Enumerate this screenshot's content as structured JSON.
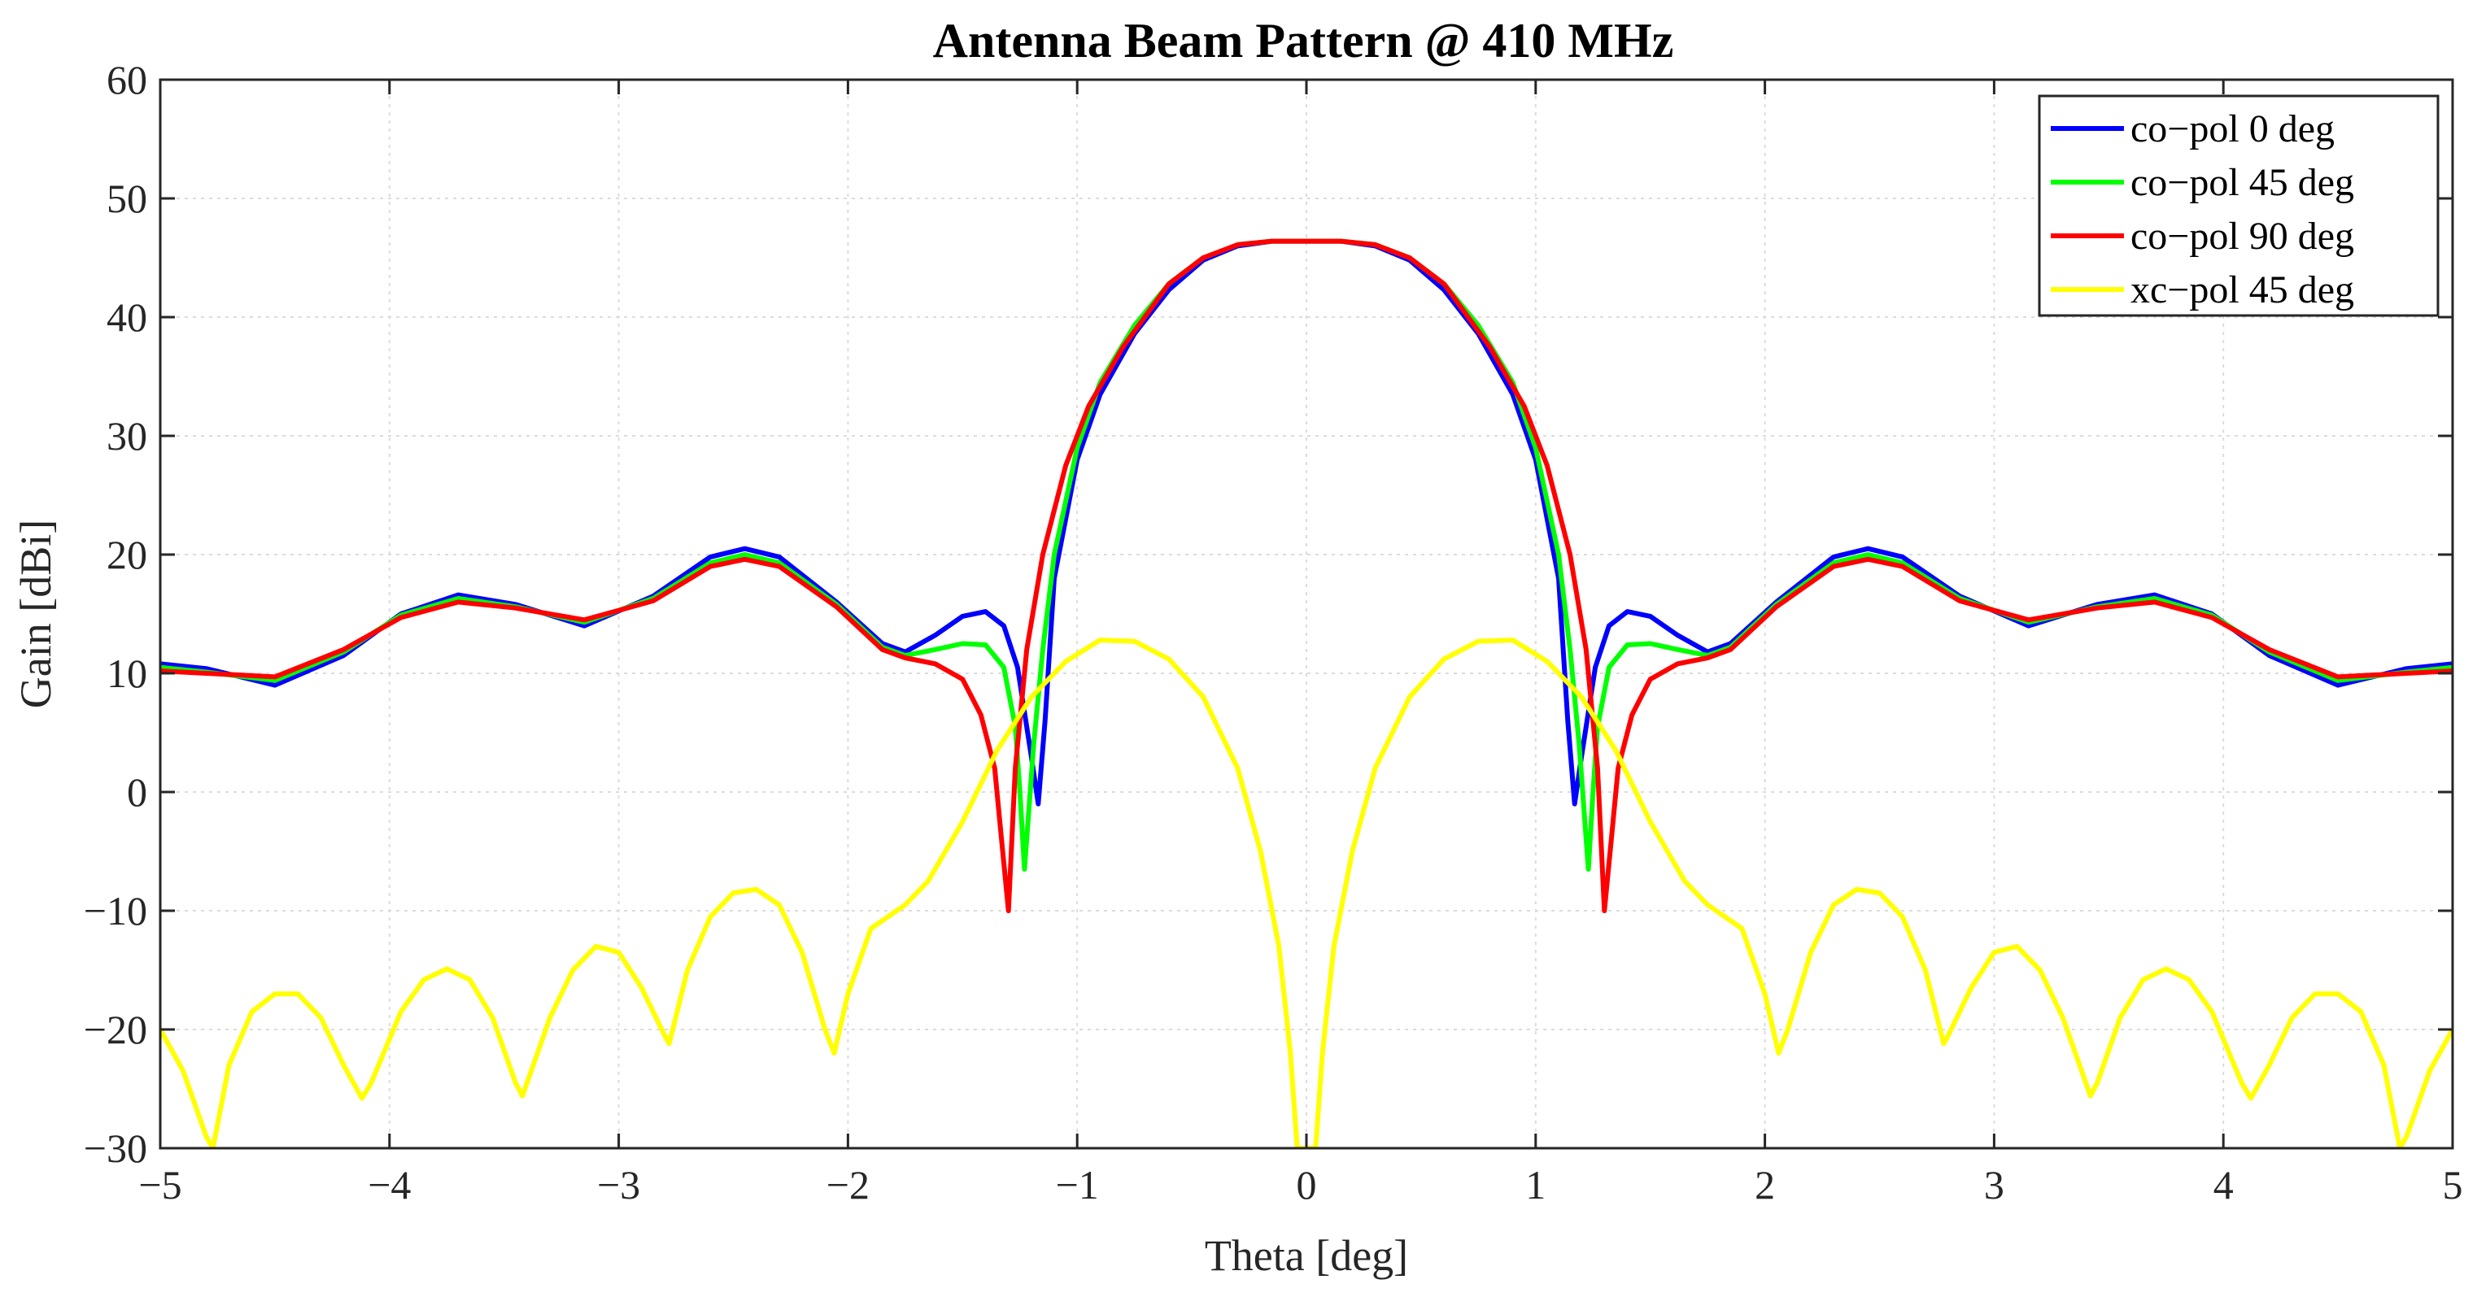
{
  "chart_data": {
    "type": "line",
    "title": "Antenna Beam Pattern @ 410 MHz",
    "xlabel": "Theta  [deg]",
    "ylabel": "Gain  [dBi]",
    "xlim": [
      -5,
      5
    ],
    "ylim": [
      -30,
      60
    ],
    "xticks": [
      -5,
      -4,
      -3,
      -2,
      -1,
      0,
      1,
      2,
      3,
      4,
      5
    ],
    "xtick_labels": [
      "−5",
      "−4",
      "−3",
      "−2",
      "−1",
      "0",
      "1",
      "2",
      "3",
      "4",
      "5"
    ],
    "yticks": [
      -30,
      -20,
      -10,
      0,
      10,
      20,
      30,
      40,
      50,
      60
    ],
    "ytick_labels": [
      "−30",
      "−20",
      "−10",
      "0",
      "10",
      "20",
      "30",
      "40",
      "50",
      "60"
    ],
    "grid": true,
    "legend_position": "top-right",
    "series": [
      {
        "name": "co−pol 0 deg",
        "color": "#0000ff",
        "x": [
          -5,
          -4.8,
          -4.5,
          -4.2,
          -3.95,
          -3.7,
          -3.45,
          -3.15,
          -2.85,
          -2.6,
          -2.45,
          -2.3,
          -2.05,
          -1.85,
          -1.75,
          -1.62,
          -1.5,
          -1.4,
          -1.32,
          -1.26,
          -1.2,
          -1.17,
          -1.14,
          -1.1,
          -1.0,
          -0.9,
          -0.75,
          -0.6,
          -0.45,
          -0.3,
          -0.15,
          0,
          0.15,
          0.3,
          0.45,
          0.6,
          0.75,
          0.9,
          1.0,
          1.1,
          1.14,
          1.17,
          1.2,
          1.26,
          1.32,
          1.4,
          1.5,
          1.62,
          1.75,
          1.85,
          2.05,
          2.3,
          2.45,
          2.6,
          2.85,
          3.15,
          3.45,
          3.7,
          3.95,
          4.2,
          4.5,
          4.8,
          5
        ],
        "y": [
          10.8,
          10.4,
          9.0,
          11.5,
          15.0,
          16.6,
          15.8,
          14.0,
          16.5,
          19.8,
          20.5,
          19.8,
          16.0,
          12.5,
          11.8,
          13.2,
          14.8,
          15.2,
          14.0,
          10.5,
          3.0,
          -1.0,
          6.0,
          18.0,
          28.0,
          33.5,
          38.6,
          42.3,
          44.8,
          46.0,
          46.4,
          46.4,
          46.4,
          46.0,
          44.8,
          42.3,
          38.6,
          33.5,
          28.0,
          18.0,
          6.0,
          -1.0,
          3.0,
          10.5,
          14.0,
          15.2,
          14.8,
          13.2,
          11.8,
          12.5,
          16.0,
          19.8,
          20.5,
          19.8,
          16.5,
          14.0,
          15.8,
          16.6,
          15.0,
          11.5,
          9.0,
          10.4,
          10.8
        ]
      },
      {
        "name": "co−pol 45 deg",
        "color": "#00ff00",
        "x": [
          -5,
          -4.8,
          -4.5,
          -4.2,
          -3.95,
          -3.7,
          -3.45,
          -3.15,
          -2.85,
          -2.6,
          -2.45,
          -2.3,
          -2.05,
          -1.85,
          -1.75,
          -1.62,
          -1.5,
          -1.4,
          -1.32,
          -1.27,
          -1.25,
          -1.23,
          -1.19,
          -1.15,
          -1.1,
          -1.0,
          -0.9,
          -0.75,
          -0.6,
          -0.45,
          -0.3,
          -0.15,
          0,
          0.15,
          0.3,
          0.45,
          0.6,
          0.75,
          0.9,
          1.0,
          1.1,
          1.15,
          1.19,
          1.23,
          1.25,
          1.27,
          1.32,
          1.4,
          1.5,
          1.62,
          1.75,
          1.85,
          2.05,
          2.3,
          2.45,
          2.6,
          2.85,
          3.15,
          3.45,
          3.7,
          3.95,
          4.2,
          4.5,
          4.8,
          5
        ],
        "y": [
          10.5,
          10.1,
          9.4,
          11.8,
          14.9,
          16.3,
          15.6,
          14.3,
          16.3,
          19.3,
          20.0,
          19.3,
          15.8,
          12.2,
          11.5,
          12.0,
          12.5,
          12.4,
          10.5,
          5.5,
          0.0,
          -6.5,
          4.0,
          12.0,
          20.0,
          29.0,
          34.5,
          39.3,
          42.8,
          45.0,
          46.1,
          46.4,
          46.4,
          46.4,
          46.1,
          45.0,
          42.8,
          39.3,
          34.5,
          29.0,
          20.0,
          12.0,
          4.0,
          -6.5,
          0.0,
          5.5,
          10.5,
          12.4,
          12.5,
          12.0,
          11.5,
          12.2,
          15.8,
          19.3,
          20.0,
          19.3,
          16.3,
          14.3,
          15.6,
          16.3,
          14.9,
          11.8,
          9.4,
          10.1,
          10.5
        ]
      },
      {
        "name": "co−pol 90 deg",
        "color": "#ff0000",
        "x": [
          -5,
          -4.8,
          -4.5,
          -4.2,
          -3.95,
          -3.7,
          -3.45,
          -3.15,
          -2.85,
          -2.6,
          -2.45,
          -2.3,
          -2.05,
          -1.85,
          -1.75,
          -1.62,
          -1.5,
          -1.42,
          -1.36,
          -1.33,
          -1.3,
          -1.27,
          -1.22,
          -1.15,
          -1.05,
          -0.95,
          -0.8,
          -0.6,
          -0.45,
          -0.3,
          -0.15,
          0,
          0.15,
          0.3,
          0.45,
          0.6,
          0.8,
          0.95,
          1.05,
          1.15,
          1.22,
          1.27,
          1.3,
          1.33,
          1.36,
          1.42,
          1.5,
          1.62,
          1.75,
          1.85,
          2.05,
          2.3,
          2.45,
          2.6,
          2.85,
          3.15,
          3.45,
          3.7,
          3.95,
          4.2,
          4.5,
          4.8,
          5
        ],
        "y": [
          10.2,
          10.0,
          9.7,
          12.0,
          14.7,
          16.0,
          15.5,
          14.5,
          16.1,
          19.0,
          19.6,
          19.0,
          15.6,
          12.0,
          11.3,
          10.8,
          9.5,
          6.5,
          2.0,
          -4.0,
          -10.0,
          2.0,
          12.0,
          20.0,
          27.5,
          32.5,
          37.5,
          42.8,
          45.0,
          46.1,
          46.4,
          46.4,
          46.4,
          46.1,
          45.0,
          42.8,
          37.5,
          32.5,
          27.5,
          20.0,
          12.0,
          2.0,
          -10.0,
          -4.0,
          2.0,
          6.5,
          9.5,
          10.8,
          11.3,
          12.0,
          15.6,
          19.0,
          19.6,
          19.0,
          16.1,
          14.5,
          15.5,
          16.0,
          14.7,
          12.0,
          9.7,
          10.0,
          10.2
        ]
      },
      {
        "name": "xc−pol 45 deg",
        "color": "#ffff00",
        "x": [
          -5,
          -4.9,
          -4.8,
          -4.77,
          -4.7,
          -4.6,
          -4.5,
          -4.4,
          -4.3,
          -4.2,
          -4.12,
          -4.08,
          -3.95,
          -3.85,
          -3.75,
          -3.65,
          -3.55,
          -3.45,
          -3.42,
          -3.3,
          -3.2,
          -3.1,
          -3.0,
          -2.9,
          -2.8,
          -2.78,
          -2.7,
          -2.6,
          -2.5,
          -2.4,
          -2.3,
          -2.2,
          -2.1,
          -2.06,
          -2.0,
          -1.9,
          -1.75,
          -1.65,
          -1.5,
          -1.35,
          -1.2,
          -1.05,
          -0.9,
          -0.75,
          -0.6,
          -0.45,
          -0.3,
          -0.2,
          -0.12,
          -0.07,
          -0.04,
          0,
          0.04,
          0.07,
          0.12,
          0.2,
          0.3,
          0.45,
          0.6,
          0.75,
          0.9,
          1.05,
          1.2,
          1.35,
          1.5,
          1.65,
          1.75,
          1.9,
          2.0,
          2.06,
          2.1,
          2.2,
          2.3,
          2.4,
          2.5,
          2.6,
          2.7,
          2.78,
          2.8,
          2.9,
          3.0,
          3.1,
          3.2,
          3.3,
          3.42,
          3.45,
          3.55,
          3.65,
          3.75,
          3.85,
          3.95,
          4.08,
          4.12,
          4.2,
          4.3,
          4.4,
          4.5,
          4.6,
          4.7,
          4.77,
          4.8,
          4.9,
          5
        ],
        "y": [
          -20.0,
          -23.5,
          -29.0,
          -30.0,
          -23.0,
          -18.5,
          -17.0,
          -17.0,
          -19.0,
          -23.0,
          -25.8,
          -24.5,
          -18.5,
          -15.8,
          -14.9,
          -15.8,
          -19.0,
          -24.5,
          -25.6,
          -19.0,
          -15.0,
          -13.0,
          -13.5,
          -16.5,
          -20.5,
          -21.2,
          -15.0,
          -10.5,
          -8.5,
          -8.2,
          -9.5,
          -13.5,
          -20.0,
          -22.0,
          -17.0,
          -11.5,
          -9.5,
          -7.5,
          -2.5,
          3.5,
          8.0,
          11.0,
          12.8,
          12.7,
          11.2,
          8.0,
          2.0,
          -5.0,
          -13.0,
          -22.0,
          -30.0,
          -30.0,
          -30.0,
          -22.0,
          -13.0,
          -5.0,
          2.0,
          8.0,
          11.2,
          12.7,
          12.8,
          11.0,
          8.0,
          3.5,
          -2.5,
          -7.5,
          -9.5,
          -11.5,
          -17.0,
          -22.0,
          -20.0,
          -13.5,
          -9.5,
          -8.2,
          -8.5,
          -10.5,
          -15.0,
          -21.2,
          -20.5,
          -16.5,
          -13.5,
          -13.0,
          -15.0,
          -19.0,
          -25.6,
          -24.5,
          -19.0,
          -15.8,
          -14.9,
          -15.8,
          -18.5,
          -24.5,
          -25.8,
          -23.0,
          -19.0,
          -17.0,
          -17.0,
          -18.5,
          -23.0,
          -30.0,
          -29.0,
          -23.5,
          -20.0
        ]
      }
    ]
  }
}
